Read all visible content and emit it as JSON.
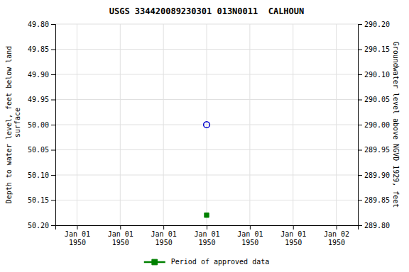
{
  "chart_data": {
    "type": "scatter",
    "title": "USGS 334420089230301 013N0011  CALHOUN",
    "y_label": "Depth to water level, feet below land\n surface",
    "y2_label": "Groundwater level above NGVD 1929, feet",
    "categories": [
      "Jan 01\n1950",
      "Jan 01\n1950",
      "Jan 01\n1950",
      "Jan 01\n1950",
      "Jan 01\n1950",
      "Jan 01\n1950",
      "Jan 02\n1950"
    ],
    "series": [
      {
        "color": "#0000cc",
        "marker": "circle-open",
        "values": [
          null,
          null,
          null,
          50.0,
          null,
          null,
          null
        ]
      },
      {
        "name": "Period of approved data",
        "color": "#008000",
        "marker": "square",
        "values": [
          null,
          null,
          null,
          50.18,
          null,
          null,
          null
        ]
      }
    ],
    "ylim": [
      50.2,
      49.8
    ],
    "yticks": [
      {
        "value": 49.8,
        "label": "49.80"
      },
      49.85,
      {
        "value": 49.9,
        "label": "49.90"
      },
      49.95,
      {
        "value": 50.0,
        "label": "50.00"
      },
      50.05,
      {
        "value": 50.1,
        "label": "50.10"
      },
      50.15,
      {
        "value": 50.2,
        "label": "50.20"
      }
    ],
    "y2lim": [
      289.8,
      290.2
    ],
    "y2ticks": [
      {
        "value": 290.2,
        "label": "290.20"
      },
      290.15,
      {
        "value": 290.1,
        "label": "290.10"
      },
      290.05,
      {
        "value": 290.0,
        "label": "290.00"
      },
      289.95,
      {
        "value": 289.9,
        "label": "289.90"
      },
      289.85,
      {
        "value": 289.8,
        "label": "289.80"
      }
    ],
    "grid": true,
    "legend": "bottom"
  }
}
